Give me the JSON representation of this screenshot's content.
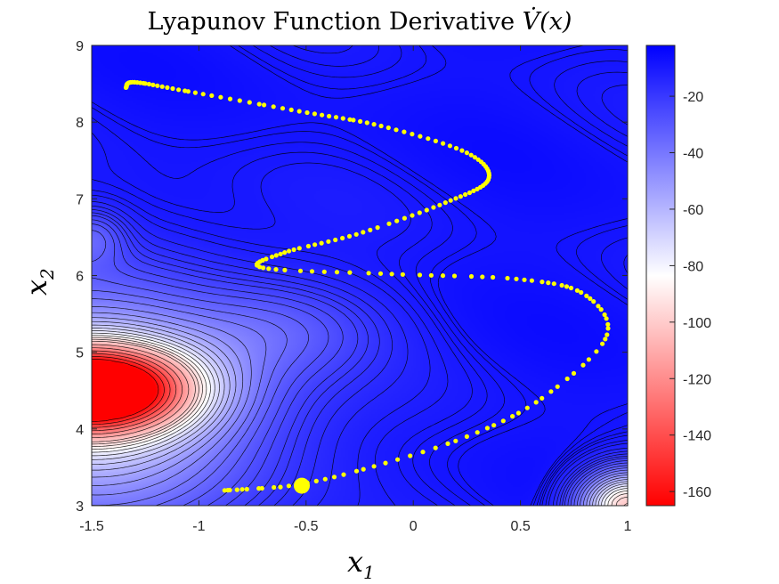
{
  "chart_data": {
    "type": "contour",
    "title": "Lyapunov Function Derivative ",
    "title_symbol": "V̇(x)",
    "xlabel": {
      "var": "x",
      "sub": "1"
    },
    "ylabel": {
      "var": "x",
      "sub": "2"
    },
    "xlim": [
      -1.5,
      1.0
    ],
    "ylim": [
      3.0,
      9.0
    ],
    "x_ticks": [
      -1.5,
      -1.0,
      -0.5,
      0.0,
      0.5,
      1.0
    ],
    "x_tick_labels": [
      "-1.5",
      "-1",
      "-0.5",
      "0",
      "0.5",
      "1"
    ],
    "y_ticks": [
      3,
      4,
      5,
      6,
      7,
      8,
      9
    ],
    "y_tick_labels": [
      "3",
      "4",
      "5",
      "6",
      "7",
      "8",
      "9"
    ],
    "colorbar": {
      "range": [
        -165,
        -2
      ],
      "ticks": [
        -20,
        -40,
        -60,
        -80,
        -100,
        -120,
        -140,
        -160
      ],
      "tick_labels": [
        "-20",
        "-40",
        "-60",
        "-80",
        "-100",
        "-120",
        "-140",
        "-160"
      ],
      "colormap": [
        "#ff0000",
        "#ffffff",
        "#0000ff"
      ]
    },
    "field": {
      "base": -8,
      "sources": [
        {
          "x": -1.5,
          "y": 4.52,
          "amp": -165,
          "sx": 0.45,
          "sy": 0.55
        },
        {
          "x": -1.5,
          "y": 4.3,
          "amp": -60,
          "sx": 0.8,
          "sy": 1.6
        },
        {
          "x": 1.0,
          "y": 3.0,
          "amp": -95,
          "sx": 0.22,
          "sy": 0.45
        },
        {
          "x": -0.6,
          "y": 5.3,
          "amp": -15,
          "sx": 0.45,
          "sy": 0.6
        },
        {
          "x": -1.5,
          "y": 6.5,
          "amp": -18,
          "sx": 0.15,
          "sy": 0.35
        }
      ],
      "contour_levels": [
        -160,
        -150,
        -140,
        -130,
        -120,
        -110,
        -100,
        -95,
        -90,
        -85,
        -80,
        -75,
        -70,
        -65,
        -60,
        -55,
        -50,
        -45,
        -40,
        -36,
        -32,
        -28,
        -25,
        -22,
        -20,
        -18,
        -16,
        -14,
        -12,
        -11,
        -10,
        -9.5,
        -9,
        -8.5,
        -8.2
      ]
    },
    "series": [
      {
        "type": "trajectory",
        "color": "#ffff00",
        "start": {
          "x": -0.52,
          "y": 3.26
        },
        "waypoints": [
          [
            -0.52,
            3.26
          ],
          [
            -0.88,
            3.2
          ],
          [
            -0.55,
            3.27
          ],
          [
            -0.2,
            3.5
          ],
          [
            0.25,
            3.9
          ],
          [
            0.6,
            4.4
          ],
          [
            0.9,
            5.2
          ],
          [
            0.8,
            5.75
          ],
          [
            0.5,
            5.95
          ],
          [
            -0.1,
            6.02
          ],
          [
            -0.7,
            6.1
          ],
          [
            -0.6,
            6.3
          ],
          [
            -0.25,
            6.55
          ],
          [
            0.15,
            6.95
          ],
          [
            0.35,
            7.25
          ],
          [
            0.25,
            7.6
          ],
          [
            -0.15,
            7.95
          ],
          [
            -0.55,
            8.15
          ],
          [
            -1.05,
            8.4
          ],
          [
            -1.3,
            8.52
          ],
          [
            -1.34,
            8.45
          ]
        ]
      }
    ]
  }
}
